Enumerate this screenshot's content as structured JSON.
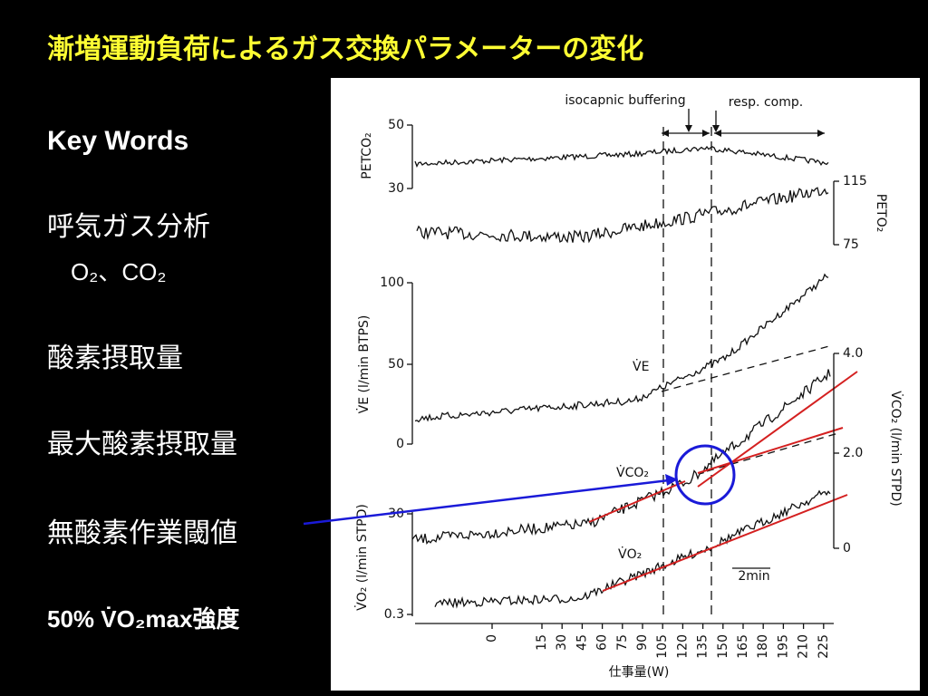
{
  "title": "漸増運動負荷によるガス交換パラメーターの変化",
  "key_words": {
    "heading": "Key Words",
    "items": [
      "呼気ガス分析",
      "O₂、CO₂",
      "酸素摂取量",
      "最大酸素摂取量",
      "無酸素作業閾値",
      "50% V̇O₂max強度"
    ]
  },
  "figure": {
    "annotations": [
      "isocapnic buffering",
      "resp. comp.",
      "2min"
    ],
    "petco2": {
      "label": "PETCO₂",
      "ticks": [
        "50",
        "30"
      ]
    },
    "peto2": {
      "label": "PETO₂",
      "ticks": [
        "115",
        "75"
      ]
    },
    "ve": {
      "label": "V̇E (l/min BTPS)",
      "trace_label": "V̇E",
      "ticks": [
        "100",
        "50",
        "0"
      ]
    },
    "vco2": {
      "label": "V̇CO₂ (l/min STPD)",
      "trace_label": "V̇CO₂",
      "ticks": [
        "4.0",
        "2.0",
        "0"
      ]
    },
    "vo2": {
      "label": "V̇O₂ (l/min STPD)",
      "trace_label": "V̇O₂",
      "ticks": [
        "30",
        "0.3"
      ]
    },
    "x_ticks": [
      "0",
      "15",
      "30",
      "45",
      "60",
      "75",
      "90",
      "105",
      "120",
      "135",
      "150",
      "165",
      "180",
      "195",
      "210",
      "225"
    ],
    "x_label": "仕事量(W)"
  }
}
